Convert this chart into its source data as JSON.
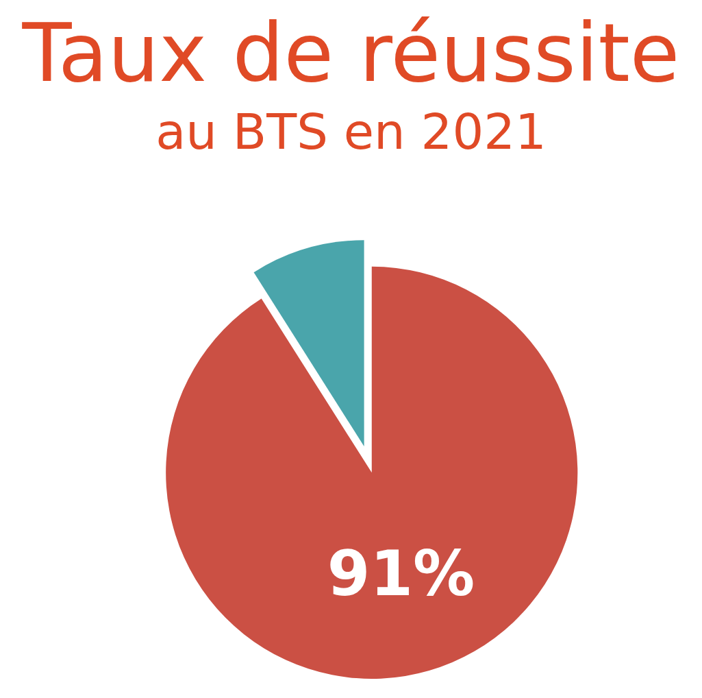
{
  "chart_data": {
    "type": "pie",
    "title": "Taux de réussite",
    "subtitle": "au BTS en 2021",
    "categories": [
      null,
      null
    ],
    "values": [
      91,
      9
    ],
    "colors": [
      "#cb5044",
      "#4aa5ab"
    ],
    "value_labels": [
      "91%",
      null
    ]
  }
}
